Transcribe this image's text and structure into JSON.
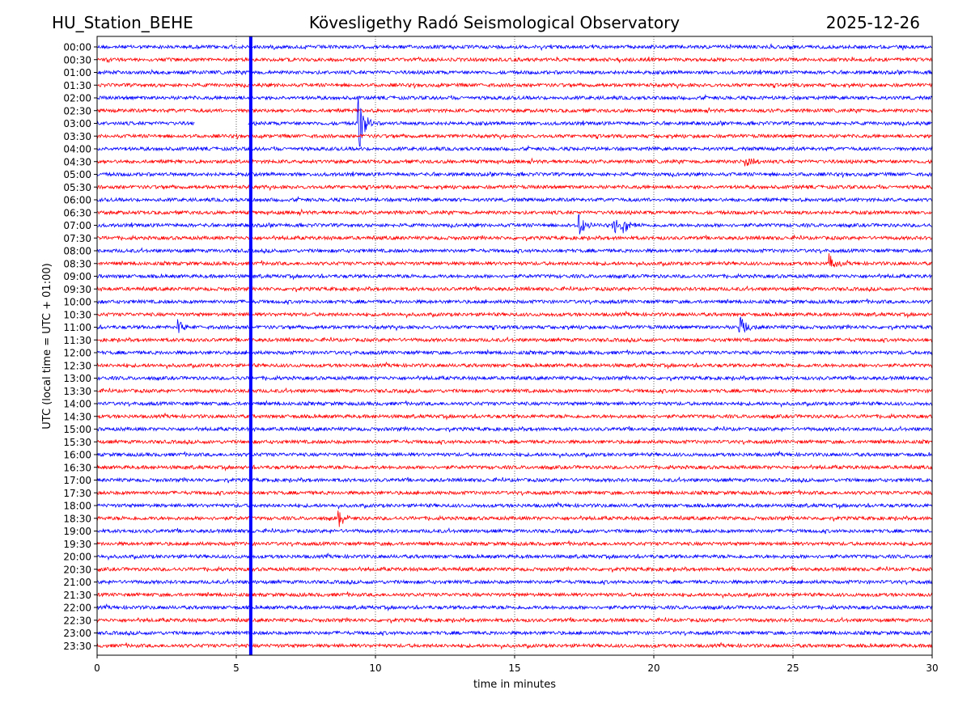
{
  "header": {
    "station": "HU_Station_BEHE",
    "observatory": "Kövesligethy Radó Seismological Observatory",
    "date": "2025-12-26"
  },
  "chart_data": {
    "type": "line",
    "title": "Kövesligethy Radó Seismological Observatory",
    "xlabel": "time in minutes",
    "ylabel": "UTC (local time = UTC + 01:00)",
    "xlim": [
      0,
      30
    ],
    "x_ticks": [
      "0",
      "5",
      "10",
      "15",
      "20",
      "25",
      "30"
    ],
    "x_tick_values": [
      0,
      5,
      10,
      15,
      20,
      25,
      30
    ],
    "grid": "vertical dotted at x ticks",
    "rows": [
      "00:00",
      "00:30",
      "01:00",
      "01:30",
      "02:00",
      "02:30",
      "03:00",
      "03:30",
      "04:00",
      "04:30",
      "05:00",
      "05:30",
      "06:00",
      "06:30",
      "07:00",
      "07:30",
      "08:00",
      "08:30",
      "09:00",
      "09:30",
      "10:00",
      "10:30",
      "11:00",
      "11:30",
      "12:00",
      "12:30",
      "13:00",
      "13:30",
      "14:00",
      "14:30",
      "15:00",
      "15:30",
      "16:00",
      "16:30",
      "17:00",
      "17:30",
      "18:00",
      "18:30",
      "19:00",
      "19:30",
      "20:00",
      "20:30",
      "21:00",
      "21:30",
      "22:00",
      "22:30",
      "23:00",
      "23:30"
    ],
    "series_colors": [
      "#0000ff",
      "#ff0000"
    ],
    "events": [
      {
        "row": "03:00",
        "time_min": 9.4,
        "amplitude": 3.0
      },
      {
        "row": "07:00",
        "time_min": 17.3,
        "amplitude": 1.3
      },
      {
        "row": "07:00",
        "time_min": 18.6,
        "amplitude": 1.0
      },
      {
        "row": "07:00",
        "time_min": 18.9,
        "amplitude": 1.2
      },
      {
        "row": "11:00",
        "time_min": 2.9,
        "amplitude": 1.0
      },
      {
        "row": "11:00",
        "time_min": 23.1,
        "amplitude": 1.2
      },
      {
        "row": "08:30",
        "time_min": 26.3,
        "amplitude": 1.0
      },
      {
        "row": "04:30",
        "time_min": 23.3,
        "amplitude": 0.8
      },
      {
        "row": "18:30",
        "time_min": 8.7,
        "amplitude": 0.8
      }
    ],
    "data_gaps": [
      {
        "row": "03:00",
        "start_min": 3.5,
        "end_min": 5.4
      }
    ],
    "marker_line": {
      "time_min": 5.52,
      "color": "#0000ff"
    }
  }
}
